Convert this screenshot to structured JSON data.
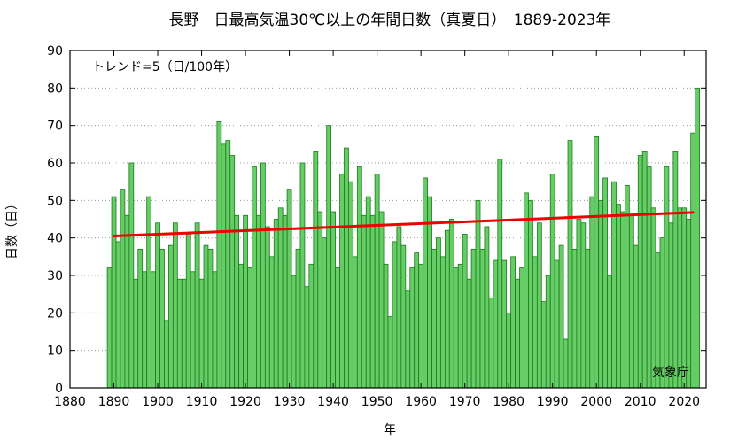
{
  "chart_data": {
    "type": "bar",
    "title": "長野　日最高気温30℃以上の年間日数（真夏日）　1889-2023年",
    "xlabel": "年",
    "ylabel": "日数（日）",
    "xlim": [
      1880,
      2025
    ],
    "ylim": [
      0,
      90
    ],
    "x_ticks": [
      1880,
      1890,
      1900,
      1910,
      1920,
      1930,
      1940,
      1950,
      1960,
      1970,
      1980,
      1990,
      2000,
      2010,
      2020
    ],
    "y_ticks": [
      0,
      10,
      20,
      30,
      40,
      50,
      60,
      70,
      80,
      90
    ],
    "grid": "horizontal dotted",
    "bar_color": "#66cc66",
    "bar_edge_color": "#1a7a1a",
    "trend_color": "#ee0000",
    "start_year": 1889,
    "values": [
      32,
      51,
      39,
      53,
      46,
      60,
      29,
      37,
      31,
      51,
      31,
      44,
      37,
      18,
      38,
      44,
      29,
      29,
      41,
      31,
      44,
      29,
      38,
      37,
      31,
      71,
      65,
      66,
      62,
      46,
      33,
      46,
      32,
      59,
      46,
      60,
      43,
      35,
      45,
      48,
      46,
      53,
      30,
      37,
      60,
      27,
      33,
      63,
      47,
      40,
      70,
      47,
      32,
      57,
      64,
      55,
      35,
      59,
      46,
      51,
      46,
      57,
      47,
      33,
      19,
      39,
      43,
      38,
      26,
      32,
      36,
      33,
      56,
      51,
      37,
      40,
      35,
      42,
      45,
      32,
      33,
      41,
      29,
      37,
      50,
      37,
      43,
      24,
      34,
      61,
      34,
      20,
      35,
      29,
      32,
      52,
      50,
      35,
      44,
      23,
      30,
      57,
      34,
      38,
      13,
      66,
      37,
      45,
      44,
      37,
      51,
      67,
      50,
      56,
      30,
      55,
      49,
      47,
      54,
      46,
      38,
      62,
      63,
      59,
      48,
      36,
      40,
      59,
      44,
      63,
      48,
      48,
      45,
      68,
      80
    ],
    "trend": {
      "start_year": 1890,
      "end_year": 2022,
      "start_value": 40.5,
      "end_value": 46.8
    },
    "annotations": {
      "trend_label": "トレンド=5（日/100年）",
      "source": "気象庁"
    }
  }
}
